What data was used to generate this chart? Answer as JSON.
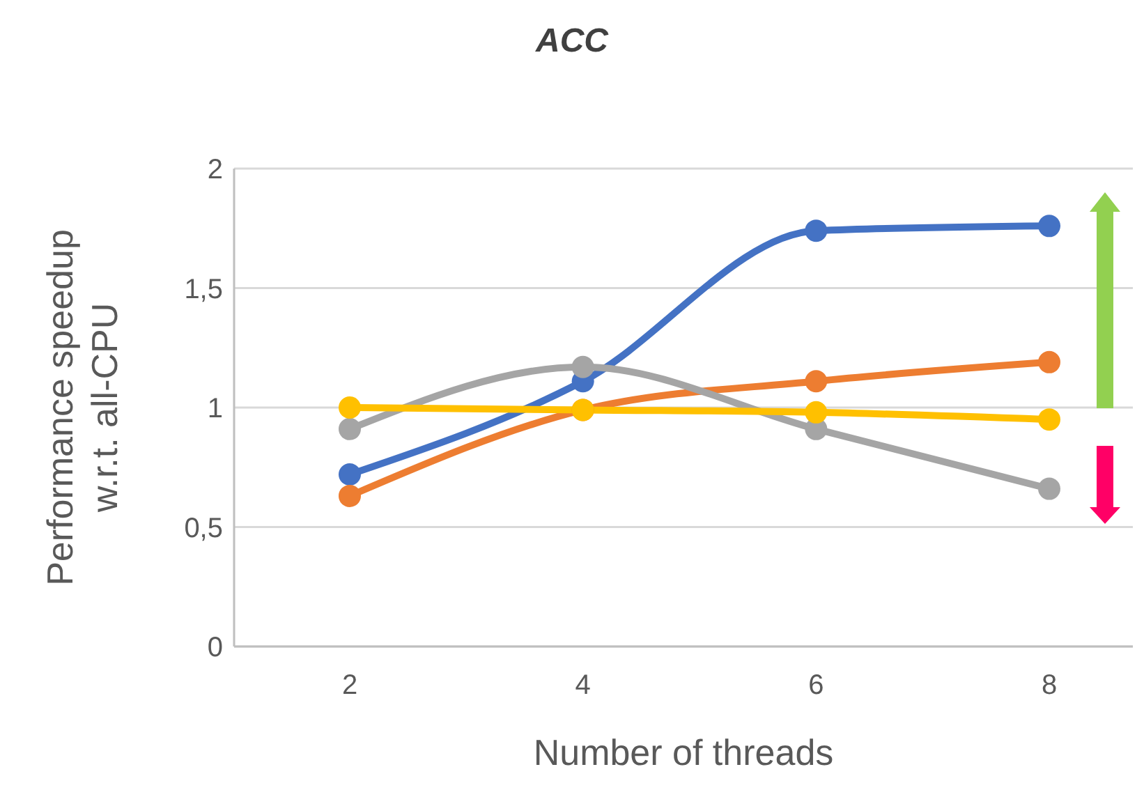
{
  "chart_data": {
    "type": "line",
    "title": "ACC",
    "xlabel": "Number of threads",
    "ylabel": "Performance speedup\nw.r.t. all-CPU",
    "categories": [
      "2",
      "4",
      "6",
      "8"
    ],
    "series": [
      {
        "color": "#4472c4",
        "values": [
          0.72,
          1.11,
          1.74,
          1.76
        ]
      },
      {
        "color": "#ed7d31",
        "values": [
          0.63,
          0.99,
          1.11,
          1.19
        ]
      },
      {
        "color": "#a5a5a5",
        "values": [
          0.91,
          1.17,
          0.91,
          0.66
        ]
      },
      {
        "color": "#ffc000",
        "values": [
          1.0,
          0.99,
          0.98,
          0.95
        ]
      }
    ],
    "ylim": [
      0,
      2
    ],
    "yticks": [
      0,
      {
        "value": 0.5,
        "label": "0,5"
      },
      1,
      {
        "value": 1.5,
        "label": "1,5"
      },
      2
    ],
    "grid": "y",
    "legend": false,
    "marker": "circle",
    "line_style": "solid"
  }
}
